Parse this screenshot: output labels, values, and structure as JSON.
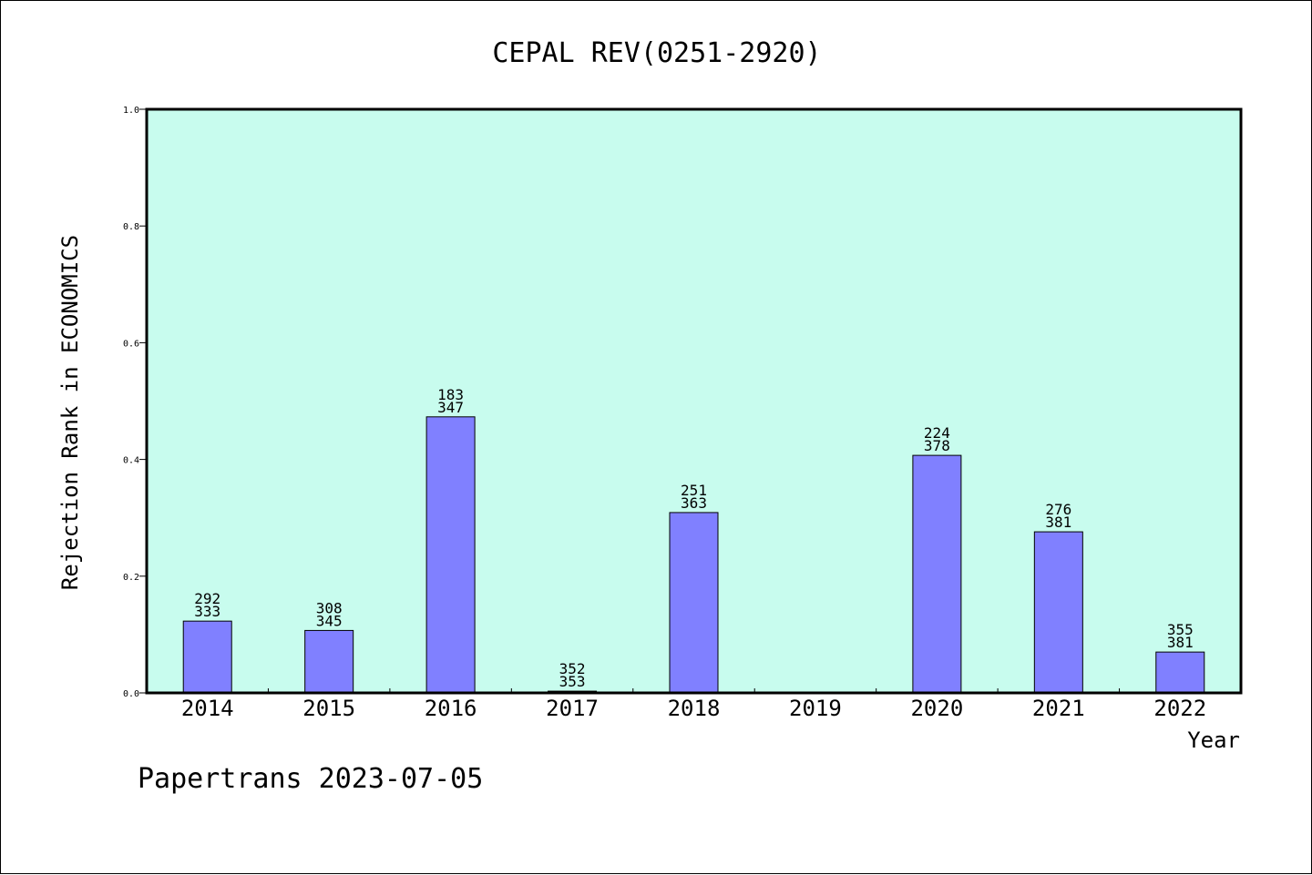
{
  "chart_data": {
    "type": "bar",
    "title": "CEPAL REV(0251-2920)",
    "xlabel": "Year",
    "ylabel": "Rejection Rank in ECONOMICS",
    "footer": "Papertrans 2023-07-05",
    "categories": [
      "2014",
      "2015",
      "2016",
      "2017",
      "2018",
      "2019",
      "2020",
      "2021",
      "2022"
    ],
    "values": [
      0.123,
      0.107,
      0.473,
      0.003,
      0.309,
      null,
      0.407,
      0.276,
      0.07
    ],
    "bar_labels": [
      [
        "292",
        "333"
      ],
      [
        "308",
        "345"
      ],
      [
        "183",
        "347"
      ],
      [
        "352",
        "353"
      ],
      [
        "251",
        "363"
      ],
      null,
      [
        "224",
        "378"
      ],
      [
        "276",
        "381"
      ],
      [
        "355",
        "381"
      ]
    ],
    "ylim": [
      0,
      1.0
    ],
    "yticks": [
      "0.0",
      "0.2",
      "0.4",
      "0.6",
      "0.8",
      "1.0"
    ],
    "ytick_values": [
      0,
      0.2,
      0.4,
      0.6,
      0.8,
      1.0
    ],
    "grid": false,
    "legend": "none",
    "colors": {
      "plot_background": "#c8fcee",
      "bar_fill": "#8080ff",
      "bar_stroke": "#000000"
    }
  }
}
